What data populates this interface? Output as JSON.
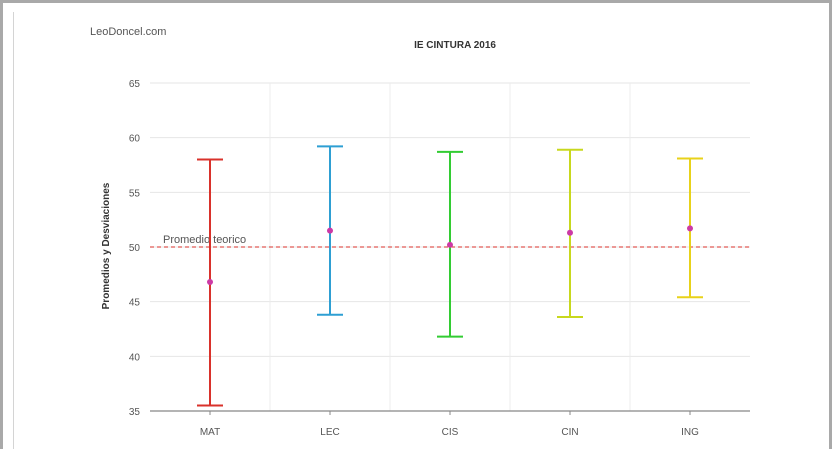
{
  "watermark": "LeoDoncel.com",
  "chart_data": {
    "type": "errorbar",
    "title": "IE CINTURA 2016",
    "xlabel": "",
    "ylabel": "Promedios y Desviaciones",
    "ylim": [
      35,
      65
    ],
    "yticks": [
      35,
      40,
      45,
      50,
      55,
      60,
      65
    ],
    "grid": true,
    "legend": "none",
    "categories": [
      "MAT",
      "LEC",
      "CIS",
      "CIN",
      "ING"
    ],
    "means": [
      46.8,
      51.5,
      50.2,
      51.3,
      51.7
    ],
    "upper": [
      58.0,
      59.2,
      58.7,
      58.9,
      58.1
    ],
    "lower": [
      35.5,
      43.8,
      41.8,
      43.6,
      45.4
    ],
    "colors": [
      "#d9322b",
      "#2e9fd3",
      "#33cc33",
      "#c8d81e",
      "#e8d21a"
    ],
    "mean_marker_color": "#cc3aa6",
    "reference_line": {
      "value": 50,
      "label": "Promedio teorico",
      "color": "#d9322b"
    }
  }
}
